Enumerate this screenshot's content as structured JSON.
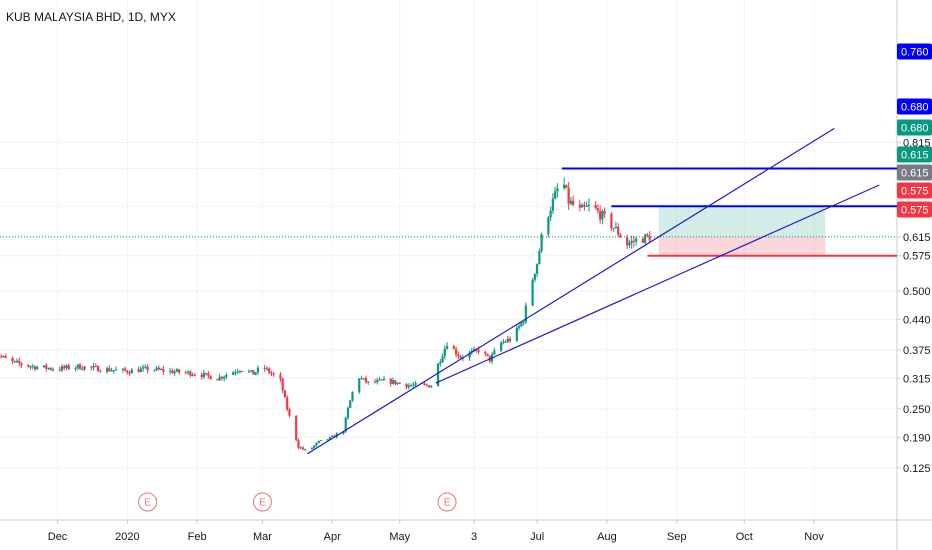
{
  "chart_data": {
    "type": "candlestick",
    "title": "KUB MALAYSIA BHD, 1D, MYX",
    "y_ticks": [
      "0.815",
      "0.760",
      "0.680",
      "0.615",
      "0.575",
      "0.500",
      "0.440",
      "0.375",
      "0.315",
      "0.250",
      "0.190",
      "0.125"
    ],
    "x_ticks": [
      "Dec",
      "2020",
      "Feb",
      "Mar",
      "Apr",
      "May",
      "3",
      "Jul",
      "Aug",
      "Sep",
      "Oct",
      "Nov"
    ],
    "earnings_marker": "E",
    "earnings_dates": [
      "2020-01-10",
      "2020-03-01",
      "2020-05-22"
    ],
    "price_badges": [
      {
        "label": "0.760",
        "role": "level",
        "color": "#0000ff"
      },
      {
        "label": "0.680",
        "role": "level",
        "color": "#0000ff"
      },
      {
        "label": "0.680",
        "role": "target",
        "color": "#089981"
      },
      {
        "label": "0.615",
        "role": "last-price",
        "color": "#089981"
      },
      {
        "label": "0.615",
        "role": "entry",
        "color": "#787b86"
      },
      {
        "label": "0.575",
        "role": "level",
        "color": "#f23645"
      },
      {
        "label": "0.575",
        "role": "stop",
        "color": "#f23645"
      }
    ],
    "horizontal_levels": [
      {
        "price": 0.76,
        "color": "#0000ff",
        "start_date": "2020-07-12"
      },
      {
        "price": 0.68,
        "color": "#0000ff",
        "start_date": "2020-08-03"
      },
      {
        "price": 0.575,
        "color": "#f23645",
        "start_date": "2020-08-19"
      }
    ],
    "position_box": {
      "start_date": "2020-08-24",
      "end_date": "2020-11-06",
      "entry": 0.615,
      "target": 0.68,
      "stop": 0.575
    },
    "trend_lines": [
      {
        "x1": "2020-03-21",
        "y1": 0.155,
        "x2": "2020-11-10",
        "y2": 0.845
      },
      {
        "x1": "2020-05-17",
        "y1": 0.305,
        "x2": "2020-11-30",
        "y2": 0.725
      }
    ],
    "price_path": [
      [
        "2019-11-01",
        0.375
      ],
      [
        "2019-11-10",
        0.35
      ],
      [
        "2019-11-20",
        0.34
      ],
      [
        "2019-12-01",
        0.335
      ],
      [
        "2019-12-10",
        0.34
      ],
      [
        "2019-12-20",
        0.335
      ],
      [
        "2020-01-01",
        0.33
      ],
      [
        "2020-01-10",
        0.335
      ],
      [
        "2020-01-20",
        0.33
      ],
      [
        "2020-02-01",
        0.325
      ],
      [
        "2020-02-10",
        0.315
      ],
      [
        "2020-02-20",
        0.335
      ],
      [
        "2020-02-26",
        0.325
      ],
      [
        "2020-03-01",
        0.34
      ],
      [
        "2020-03-05",
        0.325
      ],
      [
        "2020-03-09",
        0.31
      ],
      [
        "2020-03-12",
        0.25
      ],
      [
        "2020-03-17",
        0.17
      ],
      [
        "2020-03-21",
        0.16
      ],
      [
        "2020-03-26",
        0.18
      ],
      [
        "2020-04-01",
        0.19
      ],
      [
        "2020-04-06",
        0.205
      ],
      [
        "2020-04-08",
        0.25
      ],
      [
        "2020-04-12",
        0.32
      ],
      [
        "2020-04-17",
        0.305
      ],
      [
        "2020-04-25",
        0.31
      ],
      [
        "2020-05-05",
        0.3
      ],
      [
        "2020-05-15",
        0.3
      ],
      [
        "2020-05-18",
        0.345
      ],
      [
        "2020-05-22",
        0.39
      ],
      [
        "2020-05-28",
        0.36
      ],
      [
        "2020-06-05",
        0.375
      ],
      [
        "2020-06-10",
        0.355
      ],
      [
        "2020-06-15",
        0.39
      ],
      [
        "2020-06-20",
        0.4
      ],
      [
        "2020-06-25",
        0.44
      ],
      [
        "2020-06-28",
        0.51
      ],
      [
        "2020-07-01",
        0.56
      ],
      [
        "2020-07-04",
        0.64
      ],
      [
        "2020-07-08",
        0.69
      ],
      [
        "2020-07-12",
        0.74
      ],
      [
        "2020-07-15",
        0.69
      ],
      [
        "2020-07-20",
        0.67
      ],
      [
        "2020-07-25",
        0.68
      ],
      [
        "2020-08-01",
        0.65
      ],
      [
        "2020-08-05",
        0.63
      ],
      [
        "2020-08-10",
        0.6
      ],
      [
        "2020-08-15",
        0.61
      ],
      [
        "2020-08-20",
        0.615
      ]
    ]
  }
}
